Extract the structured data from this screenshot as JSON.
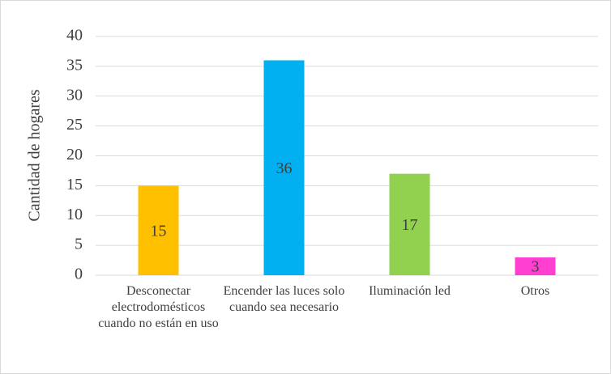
{
  "chart_data": {
    "type": "bar",
    "y_label": "Cantidad de hogares",
    "categories": [
      "Desconectar electrodomésticos cuando no están en uso",
      "Encender las luces solo cuando sea necesario",
      "Iluminación led",
      "Otros"
    ],
    "values": [
      15,
      36,
      17,
      3
    ],
    "colors": [
      "#ffc000",
      "#00b0f0",
      "#92d050",
      "#ff3fcf"
    ],
    "ylim": [
      0,
      40
    ],
    "yticks": [
      0,
      5,
      10,
      15,
      20,
      25,
      30,
      35,
      40
    ],
    "grid": true
  }
}
